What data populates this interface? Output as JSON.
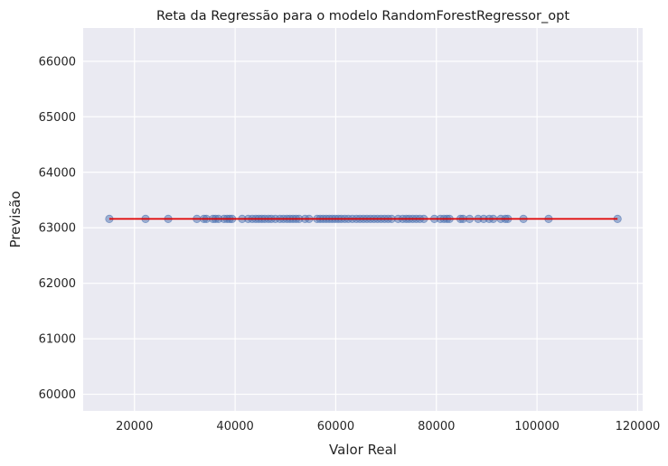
{
  "chart_data": {
    "type": "scatter",
    "title": "Reta da Regressão para o modelo RandomForestRegressor_opt",
    "xlabel": "Valor Real",
    "ylabel": "Previsão",
    "xlim": [
      9800,
      121000
    ],
    "ylim": [
      59700,
      66600
    ],
    "xticks": [
      20000,
      40000,
      60000,
      80000,
      100000,
      120000
    ],
    "yticks": [
      60000,
      61000,
      62000,
      63000,
      64000,
      65000,
      66000
    ],
    "xtick_labels": [
      "20000",
      "40000",
      "60000",
      "80000",
      "100000",
      "120000"
    ],
    "ytick_labels": [
      "60000",
      "61000",
      "62000",
      "63000",
      "64000",
      "65000",
      "66000"
    ],
    "grid": true,
    "colors": {
      "background": "#eaeaf2",
      "grid": "#ffffff",
      "points": "#4c72b0",
      "line": "#e00000"
    },
    "regression_line": {
      "x": [
        15000,
        116000
      ],
      "y": [
        63160,
        63160
      ]
    },
    "series": [
      {
        "marker": "circle",
        "x": [
          15000,
          22200,
          26700,
          32400,
          33800,
          34300,
          35600,
          36100,
          36700,
          37800,
          38400,
          38900,
          39400,
          41400,
          42600,
          43400,
          44100,
          44700,
          45300,
          45900,
          46600,
          47200,
          48000,
          48900,
          49600,
          50300,
          50900,
          51500,
          52100,
          52700,
          53900,
          54700,
          56300,
          56900,
          57500,
          58100,
          58700,
          59300,
          59900,
          60500,
          61100,
          61800,
          62500,
          63300,
          64100,
          64800,
          65500,
          66200,
          66900,
          67600,
          68300,
          69000,
          69700,
          70400,
          71100,
          72400,
          73300,
          74000,
          74600,
          75300,
          76000,
          76700,
          77500,
          79600,
          80800,
          81500,
          82100,
          82600,
          84800,
          85300,
          86600,
          88300,
          89400,
          90500,
          91300,
          92800,
          93700,
          94200,
          97300,
          102300,
          116000
        ],
        "y": [
          63160,
          63160,
          63160,
          63160,
          63160,
          63160,
          63160,
          63160,
          63160,
          63160,
          63160,
          63160,
          63160,
          63160,
          63160,
          63160,
          63160,
          63160,
          63160,
          63160,
          63160,
          63160,
          63160,
          63160,
          63160,
          63160,
          63160,
          63160,
          63160,
          63160,
          63160,
          63160,
          63160,
          63160,
          63160,
          63160,
          63160,
          63160,
          63160,
          63160,
          63160,
          63160,
          63160,
          63160,
          63160,
          63160,
          63160,
          63160,
          63160,
          63160,
          63160,
          63160,
          63160,
          63160,
          63160,
          63160,
          63160,
          63160,
          63160,
          63160,
          63160,
          63160,
          63160,
          63160,
          63160,
          63160,
          63160,
          63160,
          63160,
          63160,
          63160,
          63160,
          63160,
          63160,
          63160,
          63160,
          63160,
          63160,
          63160,
          63160,
          63160
        ]
      }
    ]
  }
}
